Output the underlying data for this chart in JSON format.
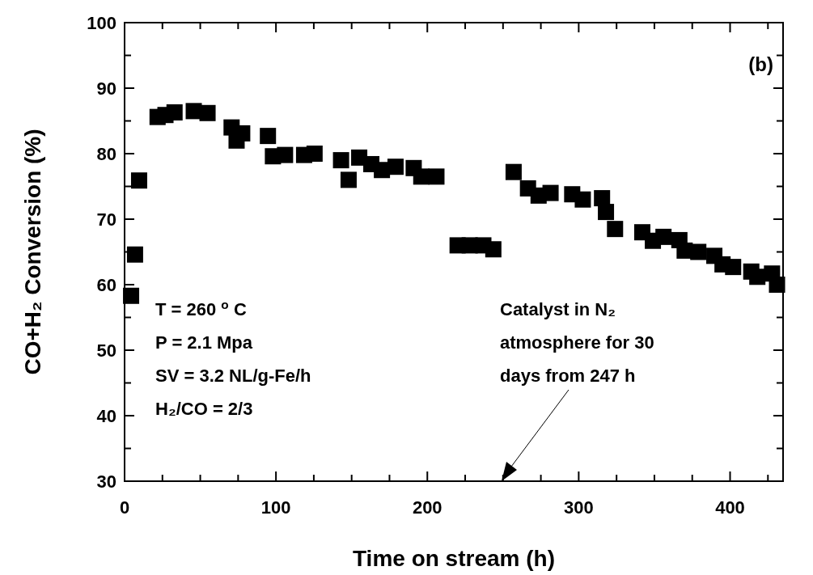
{
  "chart_data": {
    "type": "scatter",
    "xlabel": "Time on stream (h)",
    "ylabel": "CO+H₂ Conversion (%)",
    "xlim": [
      0,
      435
    ],
    "ylim": [
      30,
      100
    ],
    "xticks": [
      0,
      {
        "value": 25,
        "label": null
      },
      {
        "value": 50,
        "label": null
      },
      {
        "value": 75,
        "label": null
      },
      100,
      {
        "value": 125,
        "label": null
      },
      {
        "value": 150,
        "label": null
      },
      {
        "value": 175,
        "label": null
      },
      200,
      {
        "value": 225,
        "label": null
      },
      {
        "value": 250,
        "label": null
      },
      {
        "value": 275,
        "label": null
      },
      300,
      {
        "value": 325,
        "label": null
      },
      {
        "value": 350,
        "label": null
      },
      {
        "value": 375,
        "label": null
      },
      400,
      {
        "value": 425,
        "label": null
      }
    ],
    "yticks": [
      30,
      {
        "value": 35,
        "label": null
      },
      40,
      {
        "value": 45,
        "label": null
      },
      50,
      {
        "value": 55,
        "label": null
      },
      60,
      {
        "value": 65,
        "label": null
      },
      70,
      {
        "value": 75,
        "label": null
      },
      80,
      {
        "value": 85,
        "label": null
      },
      90,
      {
        "value": 95,
        "label": null
      },
      100
    ],
    "marker": "square",
    "grid": false,
    "series": [
      {
        "color": "#000000",
        "x": [
          4.3,
          6.9,
          9.6,
          21.8,
          27,
          33,
          45.7,
          54.8,
          70.7,
          77.7,
          74,
          94.7,
          98,
          106,
          118.6,
          125.5,
          143,
          148,
          155,
          163,
          170,
          179,
          191,
          196,
          206,
          220,
          228,
          237,
          243.6,
          257,
          266.5,
          273.5,
          281.4,
          295.7,
          302.7,
          315.4,
          318,
          324,
          342,
          349,
          356,
          366.5,
          370,
          379,
          389.6,
          395,
          402,
          414,
          418,
          427.7,
          431
        ],
        "values": [
          58.3,
          64.6,
          75.9,
          85.6,
          85.9,
          86.3,
          86.5,
          86.2,
          84,
          83.1,
          82,
          82.7,
          79.6,
          79.8,
          79.8,
          80,
          79,
          76,
          79.4,
          78.4,
          77.5,
          78,
          77.8,
          76.5,
          76.5,
          66,
          66,
          66,
          65.4,
          77.2,
          74.7,
          73.6,
          74,
          73.8,
          73,
          73.2,
          71.1,
          68.5,
          68,
          66.7,
          67.3,
          66.8,
          65.2,
          65,
          64.4,
          63.1,
          62.7,
          62,
          61.2,
          61.7,
          60
        ]
      }
    ],
    "annotations": [
      "(b)",
      "T = 260 $^{o}$C",
      "P = 2.1 Mpa",
      "SV = 3.2 NL/g-Fe/h",
      "H₂/CO = 2/3",
      "Catalyst in N₂\natmosphere for 30\ndays from 247 h"
    ]
  }
}
